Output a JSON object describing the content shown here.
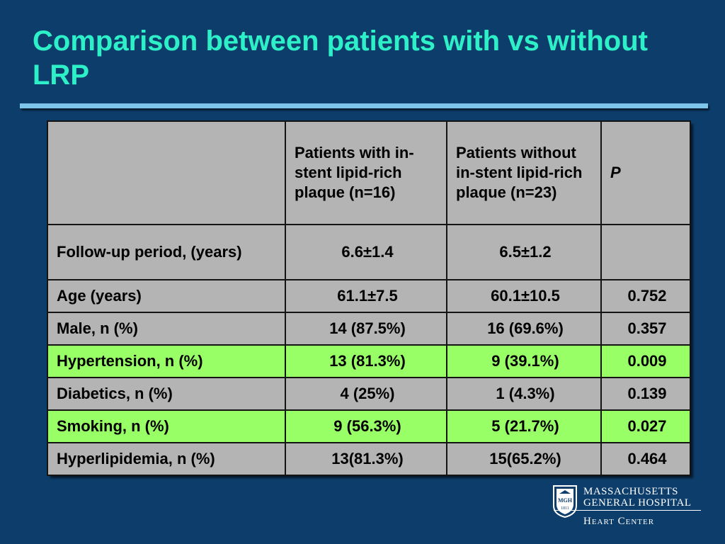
{
  "slide": {
    "title": "Comparison between patients with vs without LRP"
  },
  "table": {
    "headers": [
      "",
      "Patients with in-stent lipid-rich plaque (n=16)",
      "Patients without in-stent lipid-rich plaque (n=23)",
      "P"
    ],
    "rows": [
      {
        "label": "Follow-up period, (years)",
        "with": "6.6±1.4",
        "without": "6.5±1.2",
        "p": "",
        "highlight": false
      },
      {
        "label": "Age (years)",
        "with": "61.1±7.5",
        "without": "60.1±10.5",
        "p": "0.752",
        "highlight": false
      },
      {
        "label": "Male, n (%)",
        "with": "14 (87.5%)",
        "without": "16 (69.6%)",
        "p": "0.357",
        "highlight": false
      },
      {
        "label": "Hypertension, n (%)",
        "with": "13 (81.3%)",
        "without": "9 (39.1%)",
        "p": "0.009",
        "highlight": true
      },
      {
        "label": "Diabetics, n (%)",
        "with": "4 (25%)",
        "without": "1 (4.3%)",
        "p": "0.139",
        "highlight": false
      },
      {
        "label": "Smoking, n (%)",
        "with": "9 (56.3%)",
        "without": "5 (21.7%)",
        "p": "0.027",
        "highlight": true
      },
      {
        "label": "Hyperlipidemia, n (%)",
        "with": "13(81.3%)",
        "without": "15(65.2%)",
        "p": "0.464",
        "highlight": false
      }
    ]
  },
  "logo": {
    "line1": "MASSACHUSETTS",
    "line2": "GENERAL HOSPITAL",
    "line3": "Heart Center",
    "shield_text_top": "MGH",
    "shield_text_bottom": "1811"
  },
  "colors": {
    "background": "#0d3e6b",
    "title": "#2ef0c8",
    "table_cell": "#b4b4b4",
    "highlight_row": "#99ff66",
    "rule": "#7fc4ea"
  }
}
